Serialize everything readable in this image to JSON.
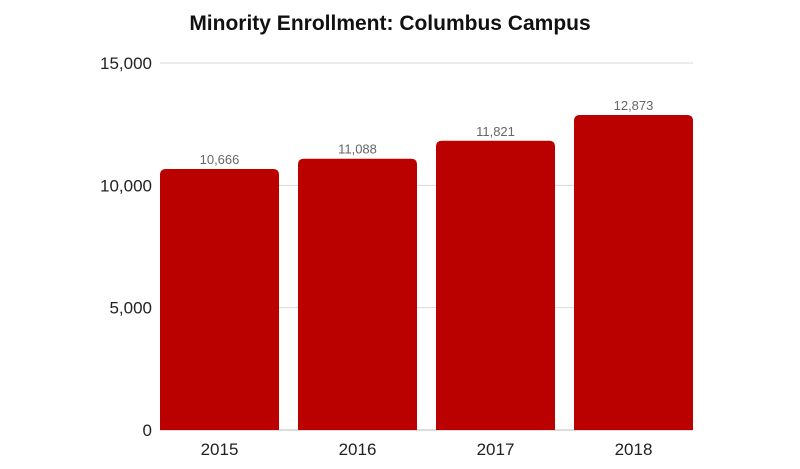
{
  "chart_data": {
    "type": "bar",
    "title": "Minority Enrollment: Columbus Campus",
    "xlabel": "",
    "ylabel": "",
    "categories": [
      "2015",
      "2016",
      "2017",
      "2018"
    ],
    "values": [
      10666,
      11088,
      11821,
      12873
    ],
    "value_labels": [
      "10,666",
      "11,088",
      "11,821",
      "12,873"
    ],
    "ylim": [
      0,
      15000
    ],
    "yticks": [
      0,
      5000,
      10000,
      15000
    ],
    "ytick_labels": [
      "0",
      "5,000",
      "10,000",
      "15,000"
    ],
    "grid": true,
    "bar_color": "#bb0000",
    "grid_color": "#d9d9d9"
  }
}
